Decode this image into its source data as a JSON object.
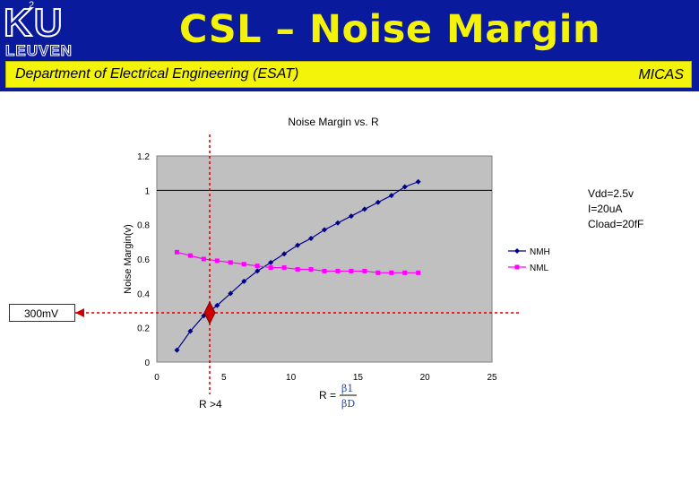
{
  "header": {
    "slide_number": "2",
    "logo_ku": "KU",
    "logo_leuven": "LEUVEN",
    "title": "CSL – Noise Margin",
    "department": "Department of Electrical Engineering (ESAT)",
    "group": "MICAS"
  },
  "colors": {
    "header_bg": "#0a1a9c",
    "title_yellow": "#f2f20a",
    "band_yellow": "#f4f40a",
    "plot_bg": "#c0c0c0",
    "nmh_color": "#00008b",
    "nml_color": "#ff00ff",
    "marker_red": "#cc0000"
  },
  "annotations": {
    "conditions": [
      "Vdd=2.5v",
      "I=20uA",
      "Cload=20fF"
    ],
    "threshold_label": "300mV",
    "r_label": "R >4",
    "formula_r": "R =",
    "formula_num": "β1",
    "formula_den": "βD"
  },
  "chart_data": {
    "type": "line",
    "title": "Noise Margin vs. R",
    "xlabel": "",
    "ylabel": "Noise Margin(v)",
    "xlim": [
      0,
      25
    ],
    "ylim": [
      0,
      1.2
    ],
    "x_ticks": [
      0,
      5,
      10,
      15,
      20,
      25
    ],
    "x_tick_labels": [
      "0",
      "5",
      "10",
      "15",
      "20",
      "25"
    ],
    "y_ticks": [
      0,
      0.2,
      0.4,
      0.6,
      0.8,
      1,
      1.2
    ],
    "y_tick_labels": [
      "0",
      "0.2",
      "0.4",
      "0.6",
      "0.8",
      "1",
      "1.2"
    ],
    "reference_line_y": 1,
    "legend_position": "right",
    "series": [
      {
        "name": "NMH",
        "marker": "diamond",
        "x": [
          1.5,
          2.5,
          3.5,
          4.5,
          5.5,
          6.5,
          7.5,
          8.5,
          9.5,
          10.5,
          11.5,
          12.5,
          13.5,
          14.5,
          15.5,
          16.5,
          17.5,
          18.5,
          19.5
        ],
        "y": [
          0.07,
          0.18,
          0.27,
          0.33,
          0.4,
          0.47,
          0.53,
          0.58,
          0.63,
          0.68,
          0.72,
          0.77,
          0.81,
          0.85,
          0.89,
          0.93,
          0.97,
          1.02,
          1.05
        ]
      },
      {
        "name": "NML",
        "marker": "square",
        "x": [
          1.5,
          2.5,
          3.5,
          4.5,
          5.5,
          6.5,
          7.5,
          8.5,
          9.5,
          10.5,
          11.5,
          12.5,
          13.5,
          14.5,
          15.5,
          16.5,
          17.5,
          18.5,
          19.5
        ],
        "y": [
          0.64,
          0.62,
          0.6,
          0.59,
          0.58,
          0.57,
          0.56,
          0.55,
          0.55,
          0.54,
          0.54,
          0.53,
          0.53,
          0.53,
          0.53,
          0.52,
          0.52,
          0.52,
          0.52
        ]
      }
    ]
  }
}
